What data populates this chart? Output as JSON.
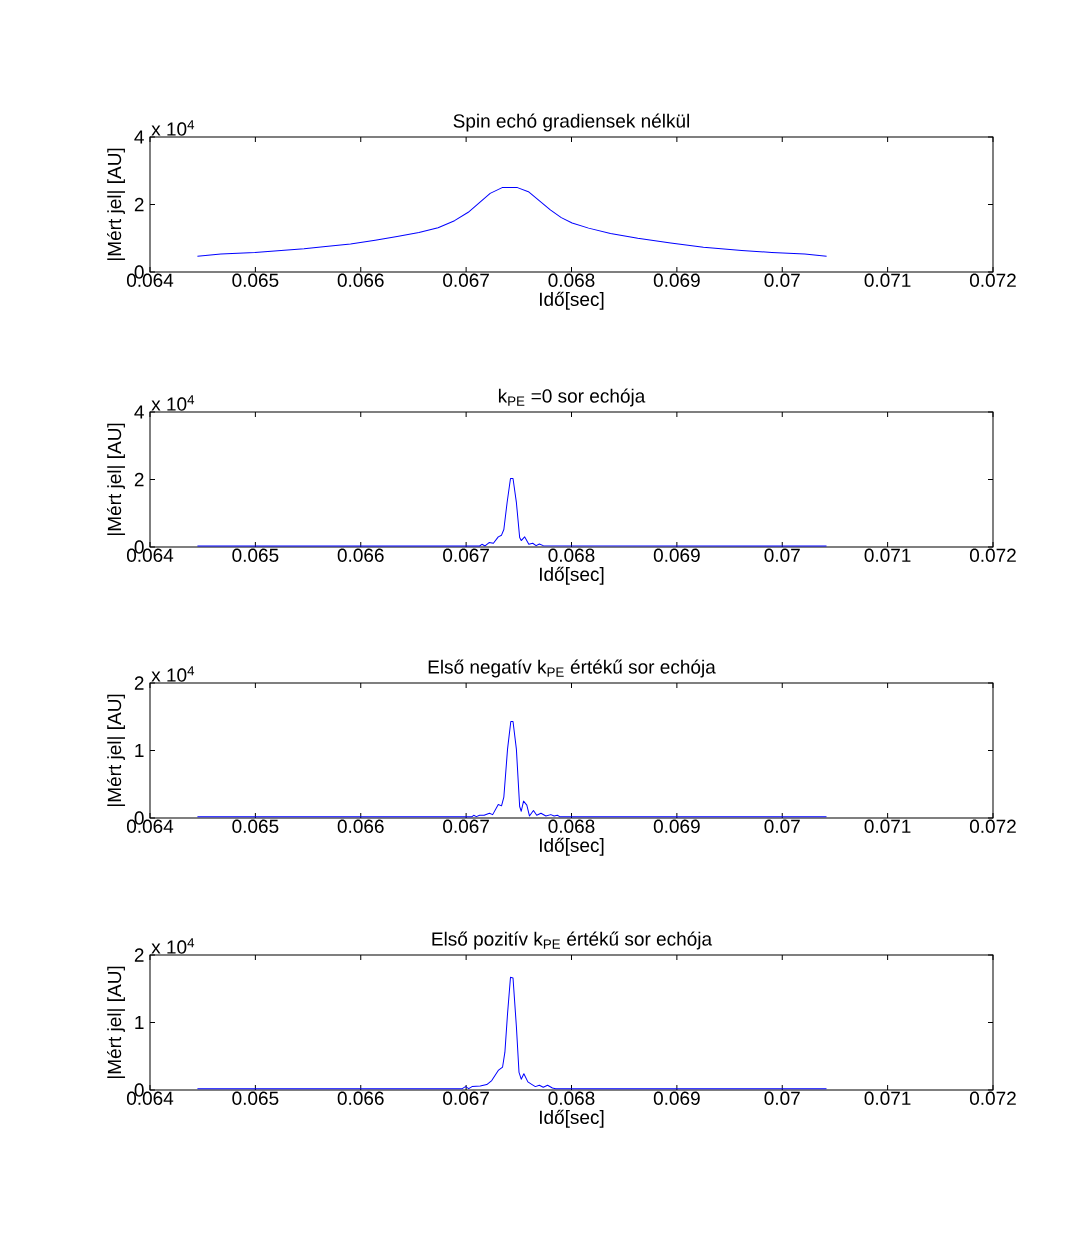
{
  "chart_data": [
    {
      "type": "line",
      "title": "Spin echó gradiensek nélkül",
      "xlabel": "Idő[sec]",
      "ylabel": "|Mért jel| [AU]",
      "annotations": [
        "x 10$^{4}$"
      ],
      "xlim": [
        0.064,
        0.072
      ],
      "ylim": [
        0,
        4
      ],
      "xticks": [
        0.064,
        0.065,
        0.066,
        0.067,
        0.068,
        0.069,
        0.07,
        0.071,
        0.072
      ],
      "yticks": [
        0,
        2,
        4
      ],
      "grid": false,
      "x": [
        0.06445,
        0.064673,
        0.064995,
        0.065244,
        0.065462,
        0.065644,
        0.065903,
        0.066137,
        0.066345,
        0.066552,
        0.066734,
        0.06689,
        0.06702,
        0.067124,
        0.067228,
        0.067342,
        0.067487,
        0.067591,
        0.067695,
        0.067799,
        0.067903,
        0.068006,
        0.068162,
        0.06837,
        0.068629,
        0.068941,
        0.069252,
        0.069616,
        0.069901,
        0.070213,
        0.070421
      ],
      "series": [
        {
          "color": "#0000ff",
          "values": [
            0.47,
            0.53,
            0.58,
            0.64,
            0.69,
            0.75,
            0.83,
            0.94,
            1.05,
            1.17,
            1.31,
            1.52,
            1.77,
            2.05,
            2.33,
            2.5,
            2.5,
            2.38,
            2.11,
            1.84,
            1.61,
            1.45,
            1.3,
            1.14,
            1.0,
            0.86,
            0.73,
            0.64,
            0.58,
            0.53,
            0.47
          ]
        }
      ]
    },
    {
      "type": "line",
      "title": "k$_{PE}$ =0 sor echója",
      "xlabel": "Idő[sec]",
      "ylabel": "|Mért jel| [AU]",
      "annotations": [
        "x 10$^{4}$"
      ],
      "xlim": [
        0.064,
        0.072
      ],
      "ylim": [
        0,
        4
      ],
      "xticks": [
        0.064,
        0.065,
        0.066,
        0.067,
        0.068,
        0.069,
        0.07,
        0.071,
        0.072
      ],
      "yticks": [
        0,
        2,
        4
      ],
      "grid": false,
      "x": [
        0.06445,
        0.067128,
        0.06715,
        0.06718,
        0.067218,
        0.067259,
        0.067305,
        0.067336,
        0.067358,
        0.067389,
        0.067421,
        0.067445,
        0.067477,
        0.067508,
        0.067523,
        0.067555,
        0.067595,
        0.067632,
        0.067664,
        0.067695,
        0.067732,
        0.07042
      ],
      "series": [
        {
          "color": "#0000ff",
          "values": [
            0.03,
            0.03,
            0.08,
            0.03,
            0.13,
            0.11,
            0.3,
            0.35,
            0.52,
            1.32,
            2.03,
            2.03,
            1.32,
            0.28,
            0.19,
            0.3,
            0.08,
            0.11,
            0.04,
            0.09,
            0.04,
            0.03
          ]
        }
      ]
    },
    {
      "type": "line",
      "title": "Első negatív k$_{PE}$ értékű sor echója",
      "xlabel": "Idő[sec]",
      "ylabel": "|Mért jel| [AU]",
      "annotations": [
        "x 10$^{4}$"
      ],
      "xlim": [
        0.064,
        0.072
      ],
      "ylim": [
        0,
        2
      ],
      "xticks": [
        0.064,
        0.065,
        0.066,
        0.067,
        0.068,
        0.069,
        0.07,
        0.071,
        0.072
      ],
      "yticks": [
        0,
        1,
        2
      ],
      "grid": false,
      "x": [
        0.06445,
        0.067056,
        0.067072,
        0.067097,
        0.067128,
        0.067171,
        0.067221,
        0.067252,
        0.067305,
        0.067336,
        0.067358,
        0.067393,
        0.067424,
        0.067445,
        0.067477,
        0.067508,
        0.067523,
        0.067545,
        0.067576,
        0.067601,
        0.067639,
        0.06767,
        0.06771,
        0.067757,
        0.067804,
        0.067835,
        0.067866,
        0.067888,
        0.07042
      ],
      "series": [
        {
          "color": "#0000ff",
          "values": [
            0.02,
            0.02,
            0.04,
            0.02,
            0.04,
            0.04,
            0.07,
            0.05,
            0.2,
            0.18,
            0.31,
            1.02,
            1.43,
            1.43,
            1.02,
            0.17,
            0.1,
            0.25,
            0.19,
            0.03,
            0.11,
            0.04,
            0.07,
            0.03,
            0.05,
            0.03,
            0.04,
            0.02,
            0.02
          ]
        }
      ]
    },
    {
      "type": "line",
      "title": "Első pozitív k$_{PE}$ értékű sor echója",
      "xlabel": "Idő[sec]",
      "ylabel": "|Mért jel| [AU]",
      "annotations": [
        "x 10$^{4}$"
      ],
      "xlim": [
        0.064,
        0.072
      ],
      "ylim": [
        0,
        2
      ],
      "xticks": [
        0.064,
        0.065,
        0.066,
        0.067,
        0.068,
        0.069,
        0.07,
        0.071,
        0.072
      ],
      "yticks": [
        0,
        1,
        2
      ],
      "grid": false,
      "x": [
        0.06445,
        0.066963,
        0.066994,
        0.067025,
        0.067056,
        0.067134,
        0.067196,
        0.067243,
        0.067305,
        0.067346,
        0.067368,
        0.067393,
        0.067421,
        0.067445,
        0.067477,
        0.067502,
        0.067523,
        0.067548,
        0.067586,
        0.067626,
        0.067657,
        0.067695,
        0.067732,
        0.067773,
        0.067819,
        0.06785,
        0.07042
      ],
      "series": [
        {
          "color": "#0000ff",
          "values": [
            0.02,
            0.02,
            0.05,
            0.02,
            0.05,
            0.06,
            0.08,
            0.14,
            0.29,
            0.34,
            0.56,
            1.13,
            1.67,
            1.66,
            0.94,
            0.26,
            0.16,
            0.24,
            0.12,
            0.08,
            0.05,
            0.07,
            0.04,
            0.07,
            0.03,
            0.02,
            0.02
          ]
        }
      ]
    }
  ]
}
